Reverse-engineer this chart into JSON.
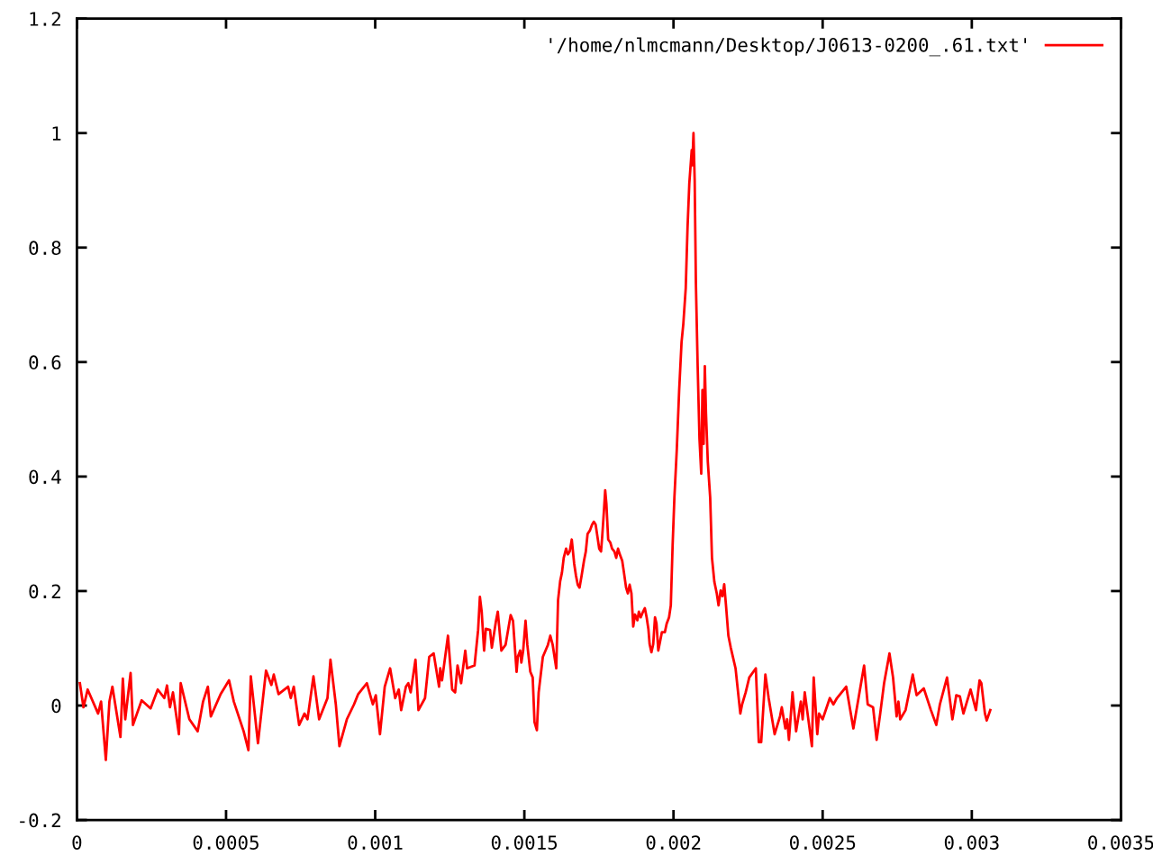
{
  "chart_data": {
    "type": "line",
    "x": [
      1e-05,
      2.2e-05,
      3.6e-05,
      7.1e-05,
      8.1e-05,
      9.7e-05,
      0.000109,
      0.000119,
      0.000146,
      0.000154,
      0.000162,
      0.00018,
      0.000188,
      0.000217,
      0.000247,
      0.000271,
      0.000293,
      0.000302,
      0.000312,
      0.000322,
      0.000342,
      0.000348,
      0.000377,
      0.000405,
      0.000423,
      0.000439,
      0.000449,
      0.000482,
      0.00051,
      0.000526,
      0.000559,
      0.000575,
      0.000583,
      0.000607,
      0.000634,
      0.000652,
      0.00066,
      0.000676,
      0.000708,
      0.000717,
      0.000727,
      0.000745,
      0.000763,
      0.000773,
      0.000793,
      0.000812,
      0.00084,
      0.00085,
      0.000868,
      0.00088,
      0.000905,
      0.000929,
      0.000943,
      0.000972,
      0.000992,
      0.001002,
      0.001016,
      0.001032,
      0.00105,
      0.001067,
      0.001079,
      0.001087,
      0.001103,
      0.001111,
      0.001119,
      0.001135,
      0.001145,
      0.001167,
      0.001181,
      0.001196,
      0.001214,
      0.001218,
      0.001224,
      0.001244,
      0.001258,
      0.001268,
      0.001276,
      0.001288,
      0.001302,
      0.001308,
      0.001333,
      0.001345,
      0.001351,
      0.001357,
      0.001365,
      0.001371,
      0.001385,
      0.001391,
      0.001405,
      0.001411,
      0.001423,
      0.001437,
      0.001454,
      0.001462,
      0.001474,
      0.001478,
      0.001486,
      0.00149,
      0.001496,
      0.001504,
      0.00151,
      0.00152,
      0.001528,
      0.001534,
      0.001542,
      0.001548,
      0.001562,
      0.001579,
      0.001587,
      0.001595,
      0.001607,
      0.001613,
      0.00162,
      0.001626,
      0.001632,
      0.00164,
      0.001646,
      0.001652,
      0.001659,
      0.001667,
      0.001673,
      0.001679,
      0.001685,
      0.001692,
      0.0017,
      0.001706,
      0.001712,
      0.00172,
      0.001727,
      0.001733,
      0.001739,
      0.001745,
      0.001751,
      0.001757,
      0.001761,
      0.001767,
      0.001771,
      0.001775,
      0.001781,
      0.001788,
      0.001794,
      0.001802,
      0.001808,
      0.001814,
      0.00182,
      0.001828,
      0.001834,
      0.001841,
      0.001847,
      0.001853,
      0.001859,
      0.001865,
      0.001871,
      0.001879,
      0.001884,
      0.00189,
      0.001898,
      0.001904,
      0.00191,
      0.001916,
      0.00192,
      0.001926,
      0.001932,
      0.001938,
      0.001943,
      0.001949,
      0.001955,
      0.001961,
      0.001971,
      0.001977,
      0.001985,
      0.001991,
      0.001997,
      0.002003,
      0.002011,
      0.002019,
      0.002027,
      0.002033,
      0.002041,
      0.002047,
      0.002053,
      0.002061,
      0.002063,
      0.002067,
      0.002071,
      0.002075,
      0.002081,
      0.002087,
      0.002093,
      0.002097,
      0.002101,
      0.002105,
      0.002109,
      0.002115,
      0.002123,
      0.002129,
      0.002137,
      0.002145,
      0.002151,
      0.002158,
      0.002164,
      0.00217,
      0.002176,
      0.002184,
      0.002192,
      0.002208,
      0.002224,
      0.00223,
      0.002242,
      0.002254,
      0.002276,
      0.002286,
      0.002294,
      0.002308,
      0.002319,
      0.002339,
      0.002357,
      0.002363,
      0.002375,
      0.002381,
      0.002387,
      0.002399,
      0.002411,
      0.002427,
      0.002433,
      0.00244,
      0.002464,
      0.00247,
      0.002482,
      0.002488,
      0.0025,
      0.002524,
      0.002536,
      0.002548,
      0.002579,
      0.002603,
      0.002615,
      0.002639,
      0.002651,
      0.002669,
      0.002681,
      0.002693,
      0.002706,
      0.002724,
      0.002736,
      0.002748,
      0.002754,
      0.00276,
      0.002778,
      0.002802,
      0.002815,
      0.002839,
      0.002863,
      0.002881,
      0.002893,
      0.002917,
      0.002935,
      0.002948,
      0.00296,
      0.002972,
      0.002996,
      0.003014,
      0.003026,
      0.003032,
      0.003044,
      0.00305,
      0.003062
    ],
    "series": [
      {
        "name": "'/home/nlmcmann/Desktop/J0613-0200_.61.txt'",
        "color": "#ff0000",
        "values": [
          0.039,
          -0.003,
          0.028,
          -0.014,
          0.007,
          -0.095,
          0.007,
          0.033,
          -0.055,
          0.047,
          -0.024,
          0.057,
          -0.034,
          0.009,
          -0.005,
          0.028,
          0.013,
          0.035,
          -0.003,
          0.023,
          -0.05,
          0.039,
          -0.024,
          -0.045,
          0.007,
          0.033,
          -0.019,
          0.02,
          0.044,
          0.007,
          -0.045,
          -0.078,
          0.051,
          -0.066,
          0.061,
          0.036,
          0.054,
          0.02,
          0.033,
          0.013,
          0.033,
          -0.034,
          -0.014,
          -0.024,
          0.051,
          -0.024,
          0.013,
          0.08,
          0.002,
          -0.071,
          -0.024,
          0.002,
          0.02,
          0.039,
          0.002,
          0.018,
          -0.05,
          0.033,
          0.065,
          0.013,
          0.028,
          -0.008,
          0.033,
          0.039,
          0.023,
          0.08,
          -0.008,
          0.013,
          0.085,
          0.091,
          0.033,
          0.065,
          0.044,
          0.122,
          0.028,
          0.023,
          0.07,
          0.039,
          0.096,
          0.065,
          0.07,
          0.132,
          0.19,
          0.164,
          0.096,
          0.134,
          0.132,
          0.101,
          0.148,
          0.164,
          0.096,
          0.106,
          0.158,
          0.148,
          0.059,
          0.085,
          0.096,
          0.075,
          0.096,
          0.148,
          0.106,
          0.059,
          0.049,
          -0.029,
          -0.043,
          0.023,
          0.085,
          0.106,
          0.122,
          0.106,
          0.065,
          0.184,
          0.217,
          0.232,
          0.258,
          0.274,
          0.264,
          0.269,
          0.29,
          0.248,
          0.227,
          0.211,
          0.206,
          0.227,
          0.253,
          0.269,
          0.3,
          0.306,
          0.316,
          0.321,
          0.316,
          0.295,
          0.274,
          0.269,
          0.295,
          0.342,
          0.376,
          0.353,
          0.29,
          0.285,
          0.274,
          0.269,
          0.258,
          0.274,
          0.264,
          0.253,
          0.232,
          0.206,
          0.196,
          0.211,
          0.196,
          0.138,
          0.159,
          0.149,
          0.164,
          0.154,
          0.164,
          0.17,
          0.154,
          0.133,
          0.107,
          0.093,
          0.107,
          0.154,
          0.143,
          0.096,
          0.112,
          0.128,
          0.128,
          0.143,
          0.154,
          0.175,
          0.279,
          0.363,
          0.447,
          0.551,
          0.635,
          0.667,
          0.729,
          0.834,
          0.912,
          0.97,
          0.944,
          1.0,
          0.918,
          0.74,
          0.593,
          0.467,
          0.405,
          0.551,
          0.457,
          0.593,
          0.51,
          0.426,
          0.363,
          0.258,
          0.216,
          0.196,
          0.175,
          0.201,
          0.191,
          0.212,
          0.175,
          0.122,
          0.101,
          0.065,
          -0.014,
          0.002,
          0.023,
          0.049,
          0.065,
          -0.064,
          -0.064,
          0.054,
          0.013,
          -0.05,
          -0.019,
          -0.003,
          -0.04,
          -0.024,
          -0.06,
          0.023,
          -0.045,
          0.007,
          -0.024,
          0.023,
          -0.071,
          0.049,
          -0.05,
          -0.014,
          -0.024,
          0.013,
          0.002,
          0.013,
          0.033,
          -0.04,
          -0.003,
          0.07,
          0.002,
          -0.003,
          -0.06,
          -0.014,
          0.039,
          0.091,
          0.049,
          -0.019,
          0.007,
          -0.024,
          -0.008,
          0.054,
          0.018,
          0.03,
          -0.008,
          -0.034,
          0.002,
          0.049,
          -0.024,
          0.018,
          0.016,
          -0.014,
          0.028,
          -0.008,
          0.044,
          0.039,
          -0.014,
          -0.026,
          -0.008
        ]
      }
    ],
    "xlim": [
      0,
      0.0035
    ],
    "ylim": [
      -0.2,
      1.2
    ],
    "xticks": [
      0,
      0.0005,
      0.001,
      0.0015,
      0.002,
      0.0025,
      0.003,
      0.0035
    ],
    "yticks": [
      -0.2,
      0,
      0.2,
      0.4,
      0.6,
      0.8,
      1,
      1.2
    ],
    "legend": "top right"
  }
}
